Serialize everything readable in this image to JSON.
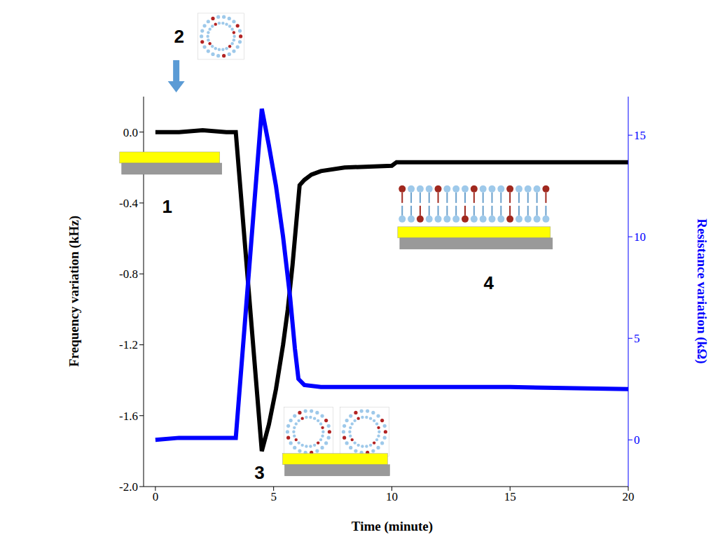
{
  "chart_data": {
    "type": "line",
    "x_label": "Time (minute)",
    "y_label": "Frequency variation (kHz)",
    "y2_label": "Resistance variation (kΩ)",
    "xlim": [
      -0.5,
      20
    ],
    "xticks": [
      0,
      5,
      10,
      15,
      20
    ],
    "ylim": [
      -2.0,
      0.2
    ],
    "yticks": [
      {
        "value": 0,
        "label": "0.0"
      },
      -0.4,
      -0.8,
      -1.2,
      -1.6,
      {
        "value": -2,
        "label": "-2.0"
      }
    ],
    "y2lim": [
      -2.3,
      16.9
    ],
    "y2ticks": [
      0,
      5,
      10,
      15
    ],
    "grid": false,
    "series": [
      {
        "name": "Frequency variation (kHz)",
        "color": "#000000",
        "line_style": "solid",
        "x": [
          0,
          1,
          2,
          3,
          3.4,
          4.5,
          4.8,
          5.1,
          5.4,
          5.6,
          5.8,
          6.0,
          6.1,
          6.3,
          6.6,
          7.0,
          8,
          10,
          10.2,
          12,
          15,
          20
        ],
        "values": [
          0,
          0,
          0.01,
          0,
          0,
          -1.8,
          -1.65,
          -1.45,
          -1.2,
          -1.0,
          -0.75,
          -0.45,
          -0.3,
          -0.27,
          -0.24,
          -0.22,
          -0.2,
          -0.19,
          -0.17,
          -0.17,
          -0.17,
          -0.17
        ]
      },
      {
        "name": "Resistance variation (kΩ)",
        "color": "#0000ff",
        "line_style": "solid",
        "axis": "y2",
        "x": [
          0,
          1,
          2,
          3,
          3.4,
          4.5,
          4.8,
          5.1,
          5.4,
          5.7,
          5.9,
          6.05,
          6.3,
          7,
          10,
          15,
          20
        ],
        "values": [
          0,
          0.1,
          0.1,
          0.1,
          0.1,
          16.3,
          14.5,
          12.5,
          10,
          7,
          4.5,
          3,
          2.7,
          2.6,
          2.6,
          2.6,
          2.5
        ]
      }
    ],
    "annotations": [
      {
        "text": "1",
        "x": 0.5,
        "y": -0.42
      },
      {
        "text": "2",
        "x": 1.0,
        "y": 0.54
      },
      {
        "text": "3",
        "x": 4.4,
        "y": -1.92
      },
      {
        "text": "4",
        "x": 14.1,
        "y": -0.85
      }
    ]
  }
}
